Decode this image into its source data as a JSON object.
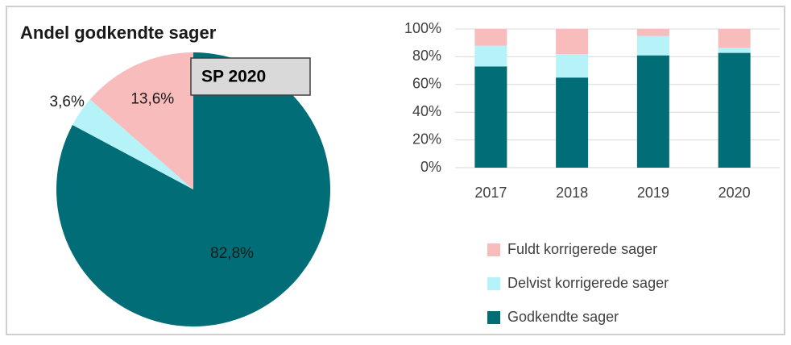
{
  "chart_data": [
    {
      "type": "pie",
      "title": "Andel godkendte sager",
      "annotation": "SP 2020",
      "values": [
        82.8,
        3.6,
        13.6
      ],
      "value_labels": [
        "82,8%",
        "3,6%",
        "13,6%"
      ],
      "colors": [
        "#006d77",
        "#b5f3f9",
        "#f8bcbc"
      ]
    },
    {
      "type": "stacked_bar",
      "categories": [
        "2017",
        "2018",
        "2019",
        "2020"
      ],
      "series": [
        {
          "name": "Fuldt korrigerede sager",
          "color": "#f8bcbc",
          "values": [
            12,
            18,
            5,
            13.6
          ]
        },
        {
          "name": "Delvist korrigerede sager",
          "color": "#b5f3f9",
          "values": [
            15,
            17,
            14,
            3.6
          ]
        },
        {
          "name": "Godkendte sager",
          "color": "#006d77",
          "values": [
            73,
            65,
            81,
            82.8
          ]
        }
      ],
      "ylim": [
        0,
        100
      ],
      "yticks": [
        {
          "value": 0,
          "label": "0%"
        },
        {
          "value": 20,
          "label": "20%"
        },
        {
          "value": 40,
          "label": "40%"
        },
        {
          "value": 60,
          "label": "60%"
        },
        {
          "value": 80,
          "label": "80%"
        },
        {
          "value": 100,
          "label": "100%"
        }
      ],
      "grid": true
    }
  ]
}
